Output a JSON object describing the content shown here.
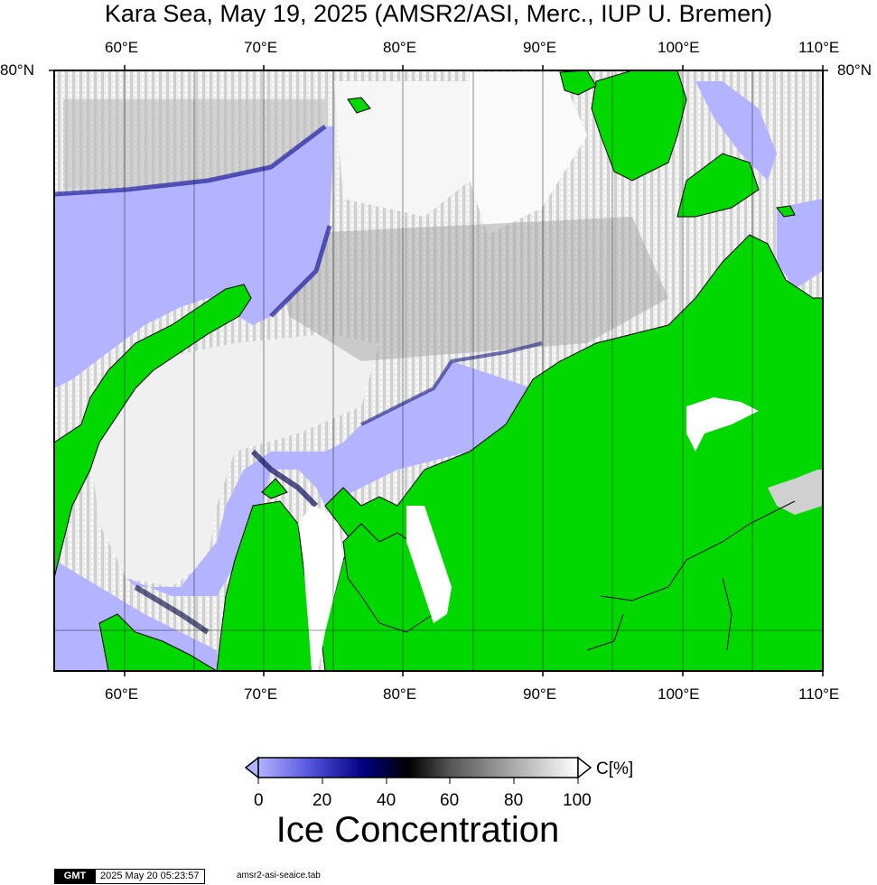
{
  "title": "Kara Sea, May 19, 2025 (AMSR2/ASI, Merc., IUP U. Bremen)",
  "map": {
    "projection": "Mercator",
    "lon_range": [
      55,
      110
    ],
    "lat_labels": [
      "80°N",
      "80°N"
    ],
    "top_lon_labels": [
      "60°E",
      "70°E",
      "80°E",
      "90°E",
      "100°E",
      "110°E"
    ],
    "bottom_lon_labels": [
      "60°E",
      "70°E",
      "80°E",
      "90°E",
      "100°E",
      "110°E"
    ],
    "colors": {
      "land": "#00d800",
      "open_water": "#b3b3ff",
      "ice_full": "#ffffff",
      "coast": "#000000"
    }
  },
  "colorbar": {
    "title": "Ice Concentration",
    "unit": "C[%]",
    "ticks": [
      "0",
      "20",
      "40",
      "60",
      "80",
      "100"
    ],
    "stops": [
      "#b3b3ff",
      "#5555dd",
      "#000080",
      "#000000",
      "#555555",
      "#aaaaaa",
      "#ffffff"
    ]
  },
  "footer": {
    "logo": "GMT",
    "timestamp": "2025 May 20 05:23:57",
    "filename": "amsr2-asi-seaice.tab"
  }
}
